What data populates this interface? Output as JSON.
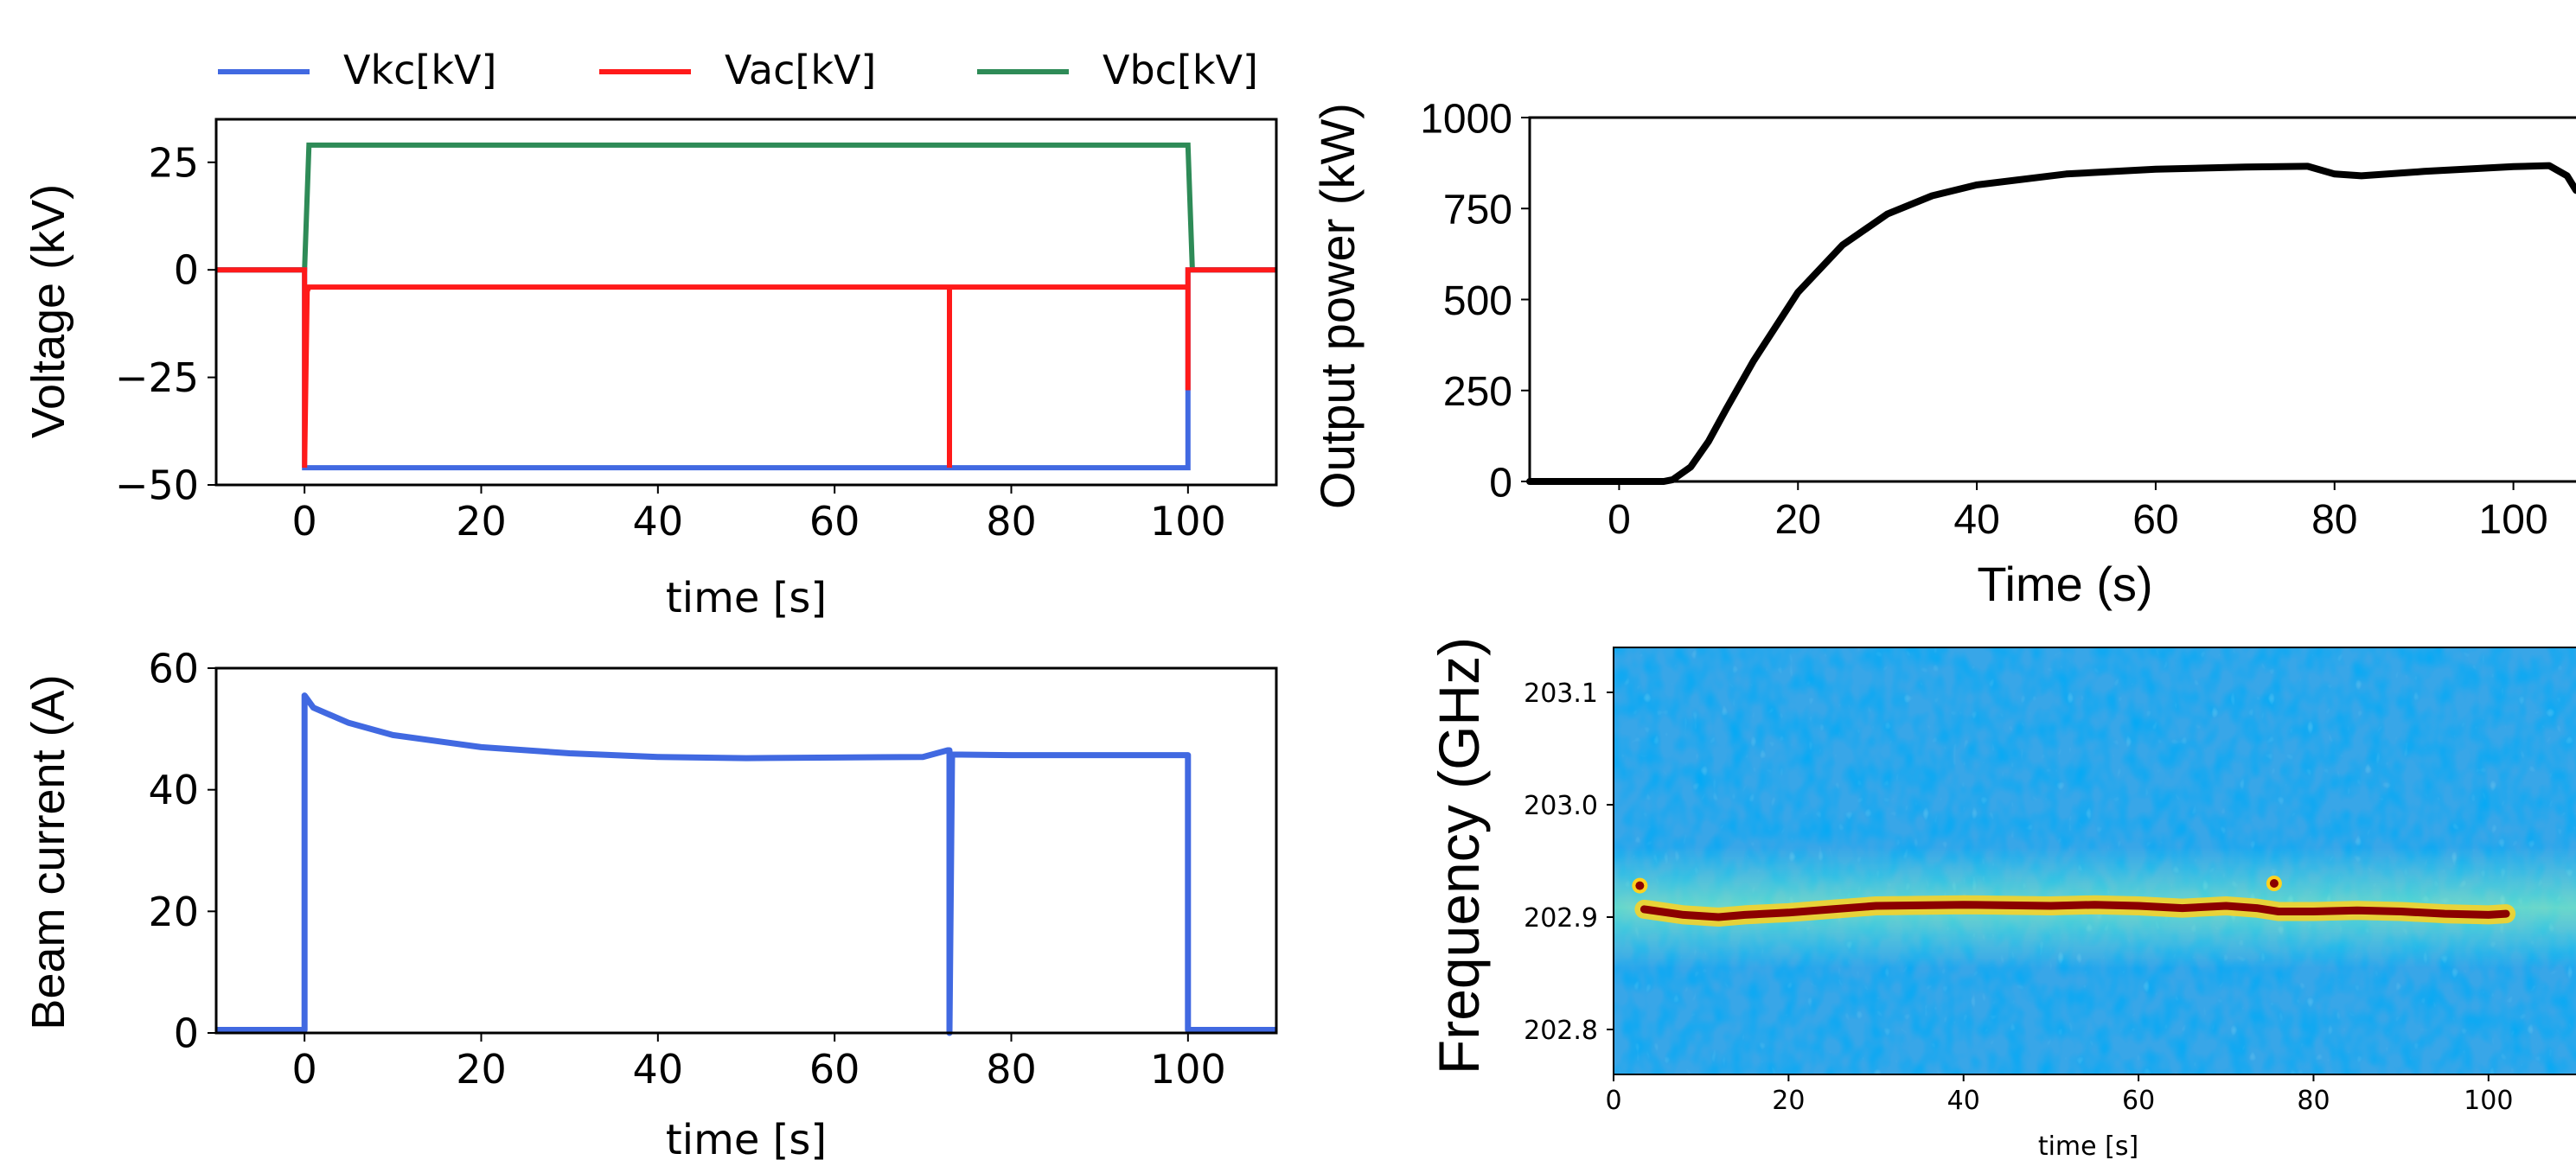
{
  "colors": {
    "vkc": "#4169e1",
    "vac": "#ff1a1a",
    "vbc": "#2e8b57",
    "power": "#000000",
    "beam": "#4169e1",
    "spec_bg": "#38a6e8",
    "spec_line": "#8b0000",
    "spec_halo": "#ffd21f"
  },
  "chart_data": [
    {
      "type": "line",
      "title": "",
      "xlabel": "time [s]",
      "ylabel": "Voltage (kV)",
      "xlim": [
        -10,
        110
      ],
      "ylim": [
        -50,
        35
      ],
      "xticks": [
        "0",
        "20",
        "40",
        "60",
        "80",
        "100"
      ],
      "yticks": [
        "25",
        "0",
        "−25",
        "−50"
      ],
      "legend": {
        "placement": "top",
        "entries": [
          "Vkc[kV]",
          "Vac[kV]",
          "Vbc[kV]"
        ]
      },
      "series": [
        {
          "name": "Vkc[kV]",
          "x": [
            -10,
            0,
            0,
            0.2,
            100,
            100,
            110
          ],
          "y": [
            0,
            0,
            -46,
            -46,
            -46,
            0,
            0
          ]
        },
        {
          "name": "Vac[kV]",
          "x": [
            -10,
            0,
            0,
            0.3,
            0.5,
            73,
            73,
            73,
            100,
            100,
            100,
            110
          ],
          "y": [
            0,
            0,
            -46,
            -5,
            -4,
            -4,
            -46,
            -4,
            -4,
            -28,
            0,
            0
          ]
        },
        {
          "name": "Vbc[kV]",
          "x": [
            -10,
            0,
            0.5,
            100,
            100.5,
            110
          ],
          "y": [
            0,
            0,
            29,
            29,
            0,
            0
          ]
        }
      ]
    },
    {
      "type": "line",
      "title": "",
      "xlabel": "time [s]",
      "ylabel": "Beam current (A)",
      "xlim": [
        -10,
        110
      ],
      "ylim": [
        0,
        60
      ],
      "xticks": [
        "0",
        "20",
        "40",
        "60",
        "80",
        "100"
      ],
      "yticks": [
        "60",
        "40",
        "20",
        "0"
      ],
      "series": [
        {
          "x": [
            -10,
            0,
            0,
            1,
            5,
            10,
            20,
            30,
            40,
            50,
            60,
            70,
            72.8,
            73,
            73,
            73.3,
            80,
            90,
            99.9,
            100,
            100,
            110
          ],
          "y": [
            0.5,
            0.5,
            55.5,
            53.5,
            51,
            49,
            47,
            46,
            45.4,
            45.2,
            45.3,
            45.4,
            46.5,
            46.5,
            0,
            45.8,
            45.7,
            45.7,
            45.7,
            45.7,
            0.5,
            0.5
          ]
        }
      ]
    },
    {
      "type": "line",
      "title": "",
      "xlabel": "Time (s)",
      "ylabel": "Output power (kW)",
      "xlim": [
        -10,
        107
      ],
      "ylim": [
        0,
        1000
      ],
      "xticks": [
        "0",
        "20",
        "40",
        "60",
        "80",
        "100"
      ],
      "yticks": [
        "1000",
        "750",
        "500",
        "250",
        "0"
      ],
      "series": [
        {
          "x": [
            -10,
            0,
            5,
            6,
            8,
            10,
            12,
            15,
            20,
            25,
            30,
            35,
            40,
            50,
            60,
            70,
            77,
            80,
            83,
            90,
            100,
            104,
            106,
            107
          ],
          "y": [
            0,
            0,
            0,
            5,
            40,
            110,
            200,
            330,
            520,
            650,
            735,
            785,
            815,
            845,
            858,
            864,
            866,
            845,
            840,
            852,
            865,
            868,
            840,
            800
          ]
        }
      ]
    },
    {
      "type": "heatmap",
      "title": "",
      "xlabel": "time [s]",
      "ylabel": "Frequency (GHz)",
      "xlim": [
        0,
        110
      ],
      "ylim": [
        202.76,
        203.14
      ],
      "xticks": [
        "0",
        "20",
        "40",
        "60",
        "80",
        "100"
      ],
      "yticks": [
        "203.1",
        "203.0",
        "202.9",
        "202.8"
      ],
      "series": [
        {
          "x": [
            3.5,
            8,
            12,
            15,
            20,
            25,
            30,
            40,
            50,
            55,
            60,
            65,
            70,
            73.5,
            76,
            80,
            85,
            90,
            95,
            100,
            102
          ],
          "y": [
            202.907,
            202.902,
            202.9,
            202.902,
            202.904,
            202.907,
            202.91,
            202.911,
            202.91,
            202.911,
            202.91,
            202.908,
            202.91,
            202.908,
            202.905,
            202.905,
            202.906,
            202.905,
            202.903,
            202.902,
            202.903
          ]
        },
        {
          "x": [
            3
          ],
          "y": [
            202.928
          ]
        },
        {
          "x": [
            75.5
          ],
          "y": [
            202.93
          ]
        }
      ]
    }
  ]
}
